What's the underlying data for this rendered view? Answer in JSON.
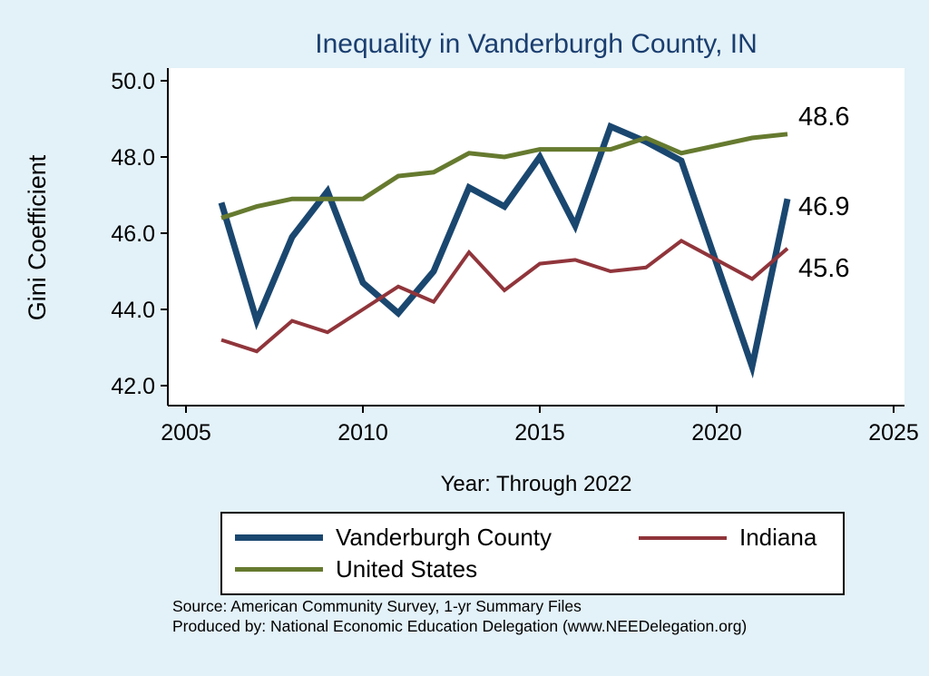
{
  "chart_data": {
    "type": "line",
    "title": "Inequality in Vanderburgh County, IN",
    "xlabel": "Year: Through 2022",
    "ylabel": "Gini Coefficient",
    "x": [
      2006,
      2007,
      2008,
      2009,
      2010,
      2011,
      2012,
      2013,
      2014,
      2015,
      2016,
      2017,
      2018,
      2019,
      2021,
      2022
    ],
    "xlim": [
      2005,
      2025
    ],
    "ylim": [
      42,
      50
    ],
    "xticks": [
      2005,
      2010,
      2015,
      2020,
      2025
    ],
    "xtick_labels": [
      "2005",
      "2010",
      "2015",
      "2020",
      "2025"
    ],
    "yticks": [
      42,
      44,
      46,
      48,
      50
    ],
    "ytick_labels": [
      "42.0",
      "44.0",
      "46.0",
      "48.0",
      "50.0"
    ],
    "grid": false,
    "legend_position": "bottom",
    "series": [
      {
        "name": "Vanderburgh County",
        "color": "#1A476F",
        "line_width": 7,
        "end_label": "46.9",
        "values": [
          46.8,
          43.7,
          45.9,
          47.1,
          44.7,
          43.9,
          45.0,
          47.2,
          46.7,
          48.0,
          46.2,
          48.8,
          48.4,
          47.9,
          42.5,
          46.9
        ]
      },
      {
        "name": "Indiana",
        "color": "#90353B",
        "line_width": 4,
        "end_label": "45.6",
        "values": [
          43.2,
          42.9,
          43.7,
          43.4,
          44.0,
          44.6,
          44.2,
          45.5,
          44.5,
          45.2,
          45.3,
          45.0,
          45.1,
          45.8,
          44.8,
          45.6
        ]
      },
      {
        "name": "United States",
        "color": "#667A2F",
        "line_width": 5,
        "end_label": "48.6",
        "values": [
          46.4,
          46.7,
          46.9,
          46.9,
          46.9,
          47.5,
          47.6,
          48.1,
          48.0,
          48.2,
          48.2,
          48.2,
          48.5,
          48.1,
          48.5,
          48.6
        ]
      }
    ]
  },
  "source": {
    "line1": "Source: American Community Survey, 1-yr Summary Files",
    "line2": "Produced by: National Economic Education Delegation (www.NEEDelegation.org)"
  },
  "colors": {
    "background": "#E3F1F8",
    "plot_background": "#FFFFFF",
    "title": "#1A3E6F",
    "axis": "#000000"
  }
}
